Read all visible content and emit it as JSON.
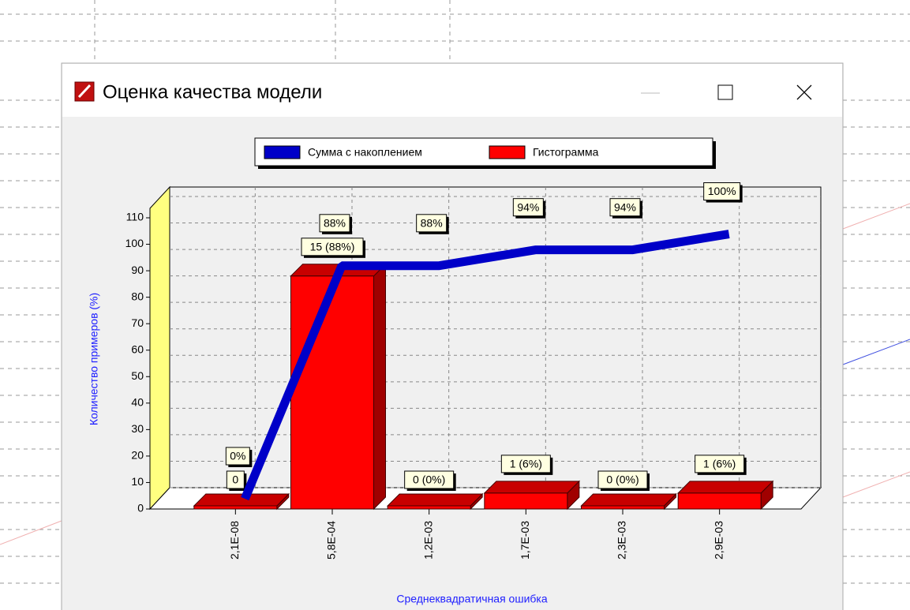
{
  "window": {
    "title": "Оценка качества модели"
  },
  "chart_data": {
    "type": "bar",
    "categories": [
      "2,1E-08",
      "5,8E-04",
      "1,2E-03",
      "1,7E-03",
      "2,3E-03",
      "2,9E-03"
    ],
    "series": [
      {
        "name": "Сумма с накоплением",
        "type": "line",
        "color": "#0000c8",
        "values": [
          0,
          88,
          88,
          94,
          94,
          100
        ],
        "value_labels": [
          "0%",
          "88%",
          "88%",
          "94%",
          "94%",
          "100%"
        ]
      },
      {
        "name": "Гистограмма",
        "type": "bar",
        "color": "#ff0000",
        "values": [
          0,
          88,
          0,
          6,
          0,
          6
        ],
        "value_labels": [
          "0",
          "15 (88%)",
          "0 (0%)",
          "1 (6%)",
          "0 (0%)",
          "1 (6%)"
        ]
      }
    ],
    "ylim": [
      0,
      110
    ],
    "yticks": [
      0,
      10,
      20,
      30,
      40,
      50,
      60,
      70,
      80,
      90,
      100,
      110
    ],
    "ylabel": "Количество примеров (%)",
    "xlabel": "Среднеквадратичная ошибка",
    "grid": true,
    "legend": "top"
  }
}
